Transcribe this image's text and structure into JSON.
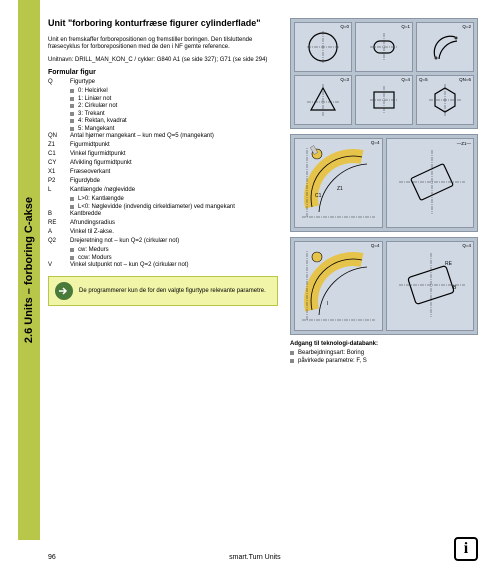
{
  "sidebar": {
    "title": "2.6 Units – forboring C-akse"
  },
  "heading": "Unit \"forboring konturfræse figurer cylinderflade\"",
  "intro1": "Unit en fremskaffer forborepositionen og fremstiller boringen. Den tilsluttende fræsecyklus for forborepositionen med de den i NF gemte reference.",
  "intro2": "Unitnavn: DRILL_MAN_KON_C / cykler: G840 A1 (se side 327); G71 (se side 294)",
  "form_title": "Formular figur",
  "params": [
    {
      "key": "Q",
      "val": "Figurtype"
    },
    {
      "bullet": "0: Helcirkel"
    },
    {
      "bullet": "1: Liniær not"
    },
    {
      "bullet": "2: Cirkulær not"
    },
    {
      "bullet": "3: Trekant"
    },
    {
      "bullet": "4: Rektan, kvadrat"
    },
    {
      "bullet": "5: Mangekant"
    },
    {
      "key": "QN",
      "val": "Antal hjørner mangekant – kun med Q=5 (mangekant)"
    },
    {
      "key": "Z1",
      "val": "Figurmidtpunkt"
    },
    {
      "key": "C1",
      "val": "Vinkel figurmidtpunkt"
    },
    {
      "key": "CY",
      "val": "Afvikling figurmidtpunkt"
    },
    {
      "key": "X1",
      "val": "Fræseoverkant"
    },
    {
      "key": "P2",
      "val": "Figurdybde"
    },
    {
      "key": "L",
      "val": "Kantlængde /nøglevidde"
    },
    {
      "bullet": "L>0: Kantlængde"
    },
    {
      "bullet": "L<0: Nøglevidde (indvendig cirkeldiameter) ved mangekant"
    },
    {
      "key": "B",
      "val": "Kantbredde"
    },
    {
      "key": "RE",
      "val": "Afrundingsradius"
    },
    {
      "key": "A",
      "val": "Vinkel til Z-akse."
    },
    {
      "key": "Q2",
      "val": "Drejeretning not – kun Q=2 (cirkulær not)"
    },
    {
      "bullet": "cw: Medurs"
    },
    {
      "bullet": "ccw: Modurs"
    },
    {
      "key": "V",
      "val": "Vinkel slutpunkt not – kun Q=2 (cirkulær not)"
    }
  ],
  "note": "De programmerer kun de for den valgte figurtype relevante parametre.",
  "shapes": [
    {
      "label": "Q=0",
      "svg": "circle"
    },
    {
      "label": "Q=1",
      "svg": "slot"
    },
    {
      "label": "Q=2",
      "svg": "arc"
    },
    {
      "label": "Q=3",
      "svg": "triangle"
    },
    {
      "label": "Q=4",
      "svg": "rect"
    },
    {
      "labelL": "Q=5",
      "label": "QN=6",
      "svg": "hex"
    }
  ],
  "slot_labels": {
    "z1": "Z1",
    "c1": "C1",
    "q4": "Q=4"
  },
  "arc_labels": {
    "i": "I",
    "q4": "Q=4"
  },
  "rect_labels": {
    "re": "RE",
    "b": "B",
    "q4": "Q=4"
  },
  "databank": {
    "title": "Adgang til teknologi-databank:",
    "a": "Bearbejdningsart: Boring",
    "b": "påvirkede parametre: F, S"
  },
  "footer": {
    "page": "96",
    "section": "smart.Turn Units"
  }
}
